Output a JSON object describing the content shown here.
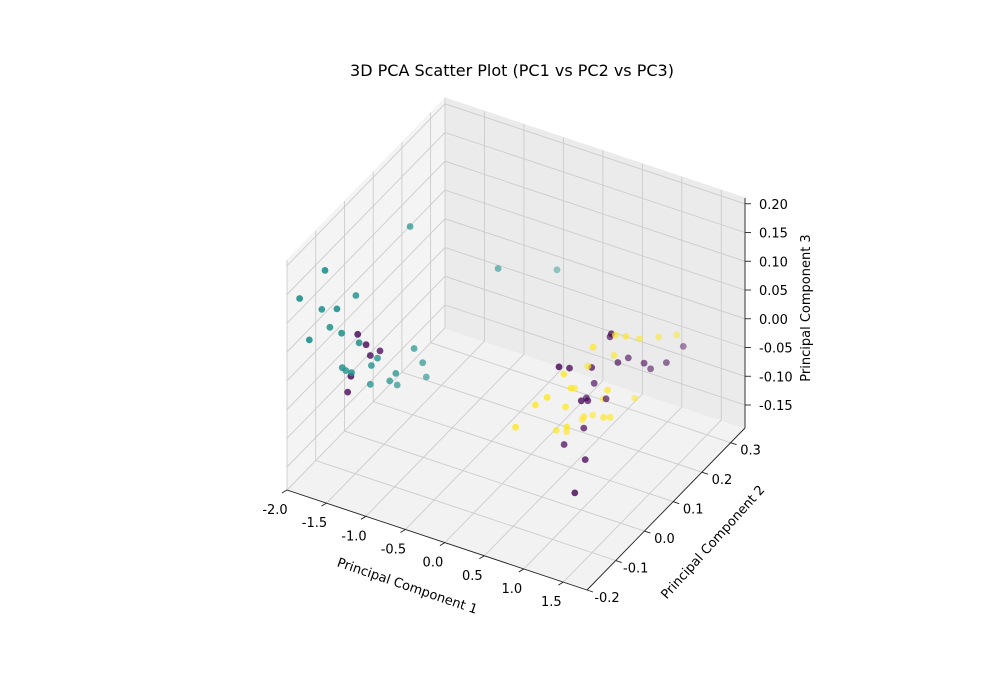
{
  "chart_data": {
    "type": "scatter",
    "projection": "3d",
    "title": "3D PCA Scatter Plot (PC1 vs PC2 vs PC3)",
    "xlabel": "Principal Component 1",
    "ylabel": "Principal Component 2",
    "zlabel": "Principal Component 3",
    "xlim": [
      -2.0,
      1.8
    ],
    "ylim": [
      -0.2,
      0.35
    ],
    "zlim": [
      -0.19,
      0.21
    ],
    "xticks": [
      "-2.0",
      "-1.5",
      "-1.0",
      "-0.5",
      "0.0",
      "0.5",
      "1.0",
      "1.5"
    ],
    "yticks": [
      "-0.2",
      "-0.1",
      "0.0",
      "0.1",
      "0.2",
      "0.3"
    ],
    "zticks": [
      "-0.15",
      "-0.10",
      "-0.05",
      "0.00",
      "0.05",
      "0.10",
      "0.15",
      "0.20"
    ],
    "grid": true,
    "legend": "none",
    "colors": {
      "class_0": "#440154",
      "class_1": "#21918c",
      "class_2": "#fde725"
    },
    "series": [
      {
        "color_key": "class_1",
        "points": [
          [
            -1.95,
            -0.17,
            0.13
          ],
          [
            -1.7,
            -0.15,
            0.18
          ],
          [
            -1.9,
            -0.15,
            0.05
          ],
          [
            -1.85,
            -0.12,
            0.09
          ],
          [
            -1.55,
            -0.15,
            0.12
          ],
          [
            -1.82,
            -0.1,
            0.05
          ],
          [
            -1.6,
            -0.07,
            0.1
          ],
          [
            -1.35,
            0.05,
            0.17
          ],
          [
            -1.6,
            -0.12,
            0.06
          ],
          [
            -1.45,
            -0.1,
            0.04
          ],
          [
            -1.7,
            -0.09,
            -0.02
          ],
          [
            -1.4,
            -0.05,
            -0.01
          ],
          [
            -1.62,
            -0.08,
            -0.03
          ],
          [
            -1.8,
            -0.05,
            -0.05
          ],
          [
            -1.55,
            -0.03,
            -0.04
          ],
          [
            -1.3,
            0.05,
            -0.04
          ],
          [
            -1.35,
            0.0,
            -0.06
          ],
          [
            -1.6,
            -0.02,
            -0.08
          ],
          [
            -1.5,
            0.02,
            -0.09
          ],
          [
            -1.3,
            0.08,
            -0.08
          ],
          [
            -1.55,
            0.06,
            -0.12
          ],
          [
            -1.4,
            0.12,
            -0.13
          ],
          [
            -0.6,
            0.15,
            0.08
          ],
          [
            -0.4,
            0.3,
            0.01
          ]
        ]
      },
      {
        "color_key": "class_0",
        "points": [
          [
            -1.65,
            -0.05,
            0.02
          ],
          [
            -1.58,
            -0.04,
            0.0
          ],
          [
            -1.7,
            -0.06,
            -0.05
          ],
          [
            -1.6,
            -0.02,
            -0.03
          ],
          [
            -1.55,
            0.0,
            -0.03
          ],
          [
            -1.85,
            -0.03,
            -0.1
          ],
          [
            0.9,
            -0.05,
            0.08
          ],
          [
            1.2,
            0.05,
            0.1
          ],
          [
            1.0,
            0.1,
            0.06
          ],
          [
            0.85,
            0.0,
            0.05
          ],
          [
            1.1,
            0.1,
            0.02
          ],
          [
            1.35,
            0.2,
            -0.02
          ],
          [
            0.95,
            0.05,
            0.03
          ],
          [
            1.05,
            0.15,
            0.0
          ],
          [
            0.8,
            0.1,
            -0.03
          ],
          [
            1.25,
            0.15,
            0.0
          ],
          [
            1.0,
            0.0,
            0.0
          ],
          [
            0.9,
            0.05,
            -0.03
          ],
          [
            0.7,
            0.1,
            -0.06
          ],
          [
            1.15,
            0.2,
            -0.04
          ],
          [
            0.95,
            0.1,
            -0.05
          ],
          [
            0.85,
            0.05,
            -0.08
          ],
          [
            1.2,
            0.3,
            -0.05
          ],
          [
            1.05,
            0.0,
            -0.1
          ],
          [
            0.6,
            0.05,
            -0.12
          ],
          [
            1.1,
            -0.05,
            -0.13
          ]
        ]
      },
      {
        "color_key": "class_2",
        "points": [
          [
            1.15,
            0.0,
            0.1
          ],
          [
            1.25,
            0.05,
            0.1
          ],
          [
            0.85,
            -0.02,
            0.05
          ],
          [
            1.05,
            -0.05,
            0.05
          ],
          [
            1.2,
            0.1,
            0.07
          ],
          [
            1.3,
            0.12,
            0.06
          ],
          [
            0.75,
            -0.05,
            0.02
          ],
          [
            0.9,
            0.05,
            0.03
          ],
          [
            1.05,
            0.1,
            0.03
          ],
          [
            1.15,
            0.05,
            0.0
          ],
          [
            1.25,
            0.2,
            0.02
          ],
          [
            0.6,
            -0.05,
            0.0
          ],
          [
            0.8,
            0.0,
            -0.02
          ],
          [
            1.0,
            -0.05,
            -0.02
          ],
          [
            1.1,
            0.05,
            -0.05
          ],
          [
            1.3,
            0.25,
            0.0
          ],
          [
            0.35,
            -0.05,
            -0.05
          ],
          [
            0.55,
            0.1,
            -0.05
          ],
          [
            0.85,
            0.05,
            -0.06
          ],
          [
            1.0,
            0.1,
            -0.08
          ],
          [
            0.5,
            0.05,
            -0.1
          ],
          [
            0.65,
            0.1,
            -0.1
          ],
          [
            0.45,
            0.1,
            -0.13
          ],
          [
            0.6,
            0.15,
            -0.12
          ],
          [
            0.95,
            0.2,
            -0.1
          ],
          [
            0.55,
            0.2,
            -0.12
          ]
        ]
      }
    ]
  }
}
